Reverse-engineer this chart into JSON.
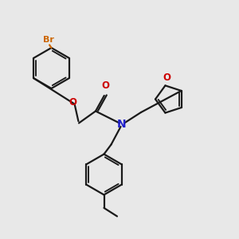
{
  "bg_color": "#e8e8e8",
  "bond_color": "#1a1a1a",
  "N_color": "#2020cc",
  "O_color": "#cc0000",
  "Br_color": "#cc6600",
  "line_width": 1.6,
  "font_size_atom": 8.5,
  "font_size_br": 8.0,
  "xlim": [
    0,
    10
  ],
  "ylim": [
    0,
    10
  ]
}
